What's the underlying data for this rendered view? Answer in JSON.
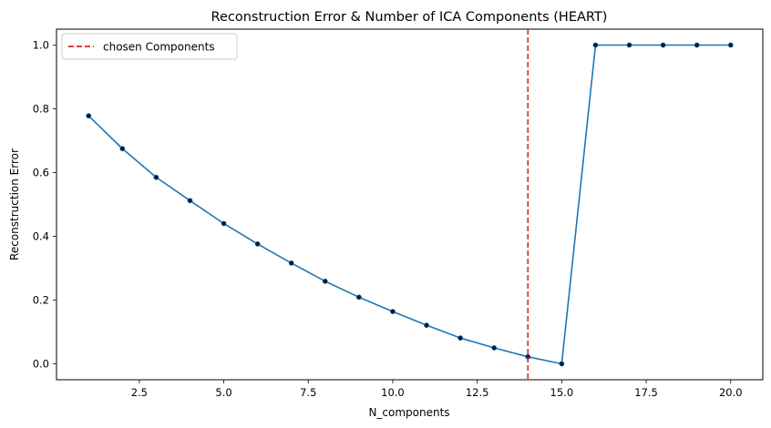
{
  "chart_data": {
    "type": "line",
    "title": "Reconstruction Error & Number of ICA Components (HEART)",
    "xlabel": "N_components",
    "ylabel": "Reconstruction Error",
    "xlim": [
      0.05,
      20.95
    ],
    "ylim": [
      -0.05,
      1.05
    ],
    "x_ticks": [
      2.5,
      5.0,
      7.5,
      10.0,
      12.5,
      15.0,
      17.5,
      20.0
    ],
    "x_tick_labels": [
      "2.5",
      "5.0",
      "7.5",
      "10.0",
      "12.5",
      "15.0",
      "17.5",
      "20.0"
    ],
    "y_ticks": [
      0.0,
      0.2,
      0.4,
      0.6,
      0.8,
      1.0
    ],
    "y_tick_labels": [
      "0.0",
      "0.2",
      "0.4",
      "0.6",
      "0.8",
      "1.0"
    ],
    "grid": false,
    "series": [
      {
        "color": "#1f77b4",
        "marker_color": "#0b1a3a",
        "x": [
          1,
          2,
          3,
          4,
          5,
          6,
          7,
          8,
          9,
          10,
          11,
          12,
          13,
          14,
          15,
          16,
          17,
          18,
          19,
          20
        ],
        "y": [
          0.778,
          0.675,
          0.585,
          0.512,
          0.44,
          0.376,
          0.316,
          0.259,
          0.209,
          0.164,
          0.121,
          0.081,
          0.05,
          0.022,
          0.0,
          1.0,
          1.0,
          1.0,
          1.0,
          1.0
        ]
      }
    ],
    "vline": {
      "x": 14,
      "color": "#d62728",
      "label": "chosen Components"
    },
    "legend": {
      "position": "top-left"
    }
  }
}
